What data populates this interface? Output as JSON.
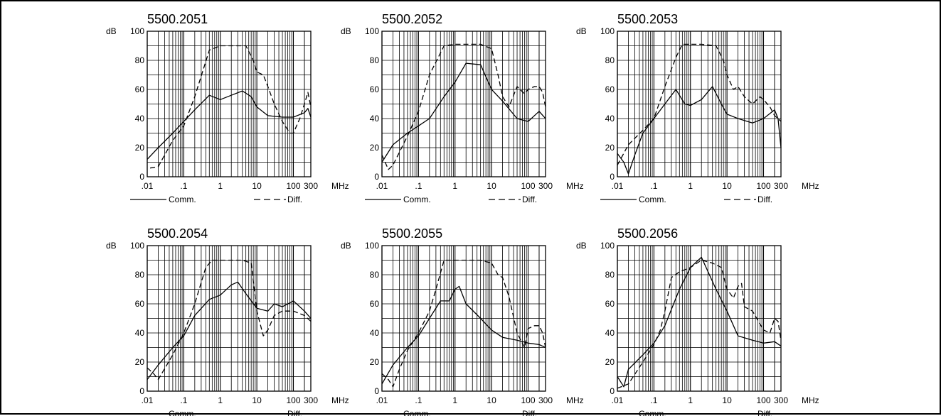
{
  "chart_data": [
    {
      "type": "line",
      "title": "5500.2051",
      "ylabel": "dB",
      "xunit": "MHz",
      "x_scale": "log",
      "xlim": [
        0.01,
        300
      ],
      "ylim": [
        0,
        100
      ],
      "xticks": [
        ".01",
        ".1",
        "1",
        "10",
        "100",
        "300"
      ],
      "yticks": [
        "0",
        "20",
        "40",
        "60",
        "80",
        "100"
      ],
      "grid": true,
      "series": [
        {
          "name": "Comm.",
          "style": "solid",
          "x": [
            0.01,
            0.02,
            0.05,
            0.1,
            0.2,
            0.5,
            1,
            2,
            4,
            7,
            10,
            20,
            50,
            100,
            200,
            250,
            300
          ],
          "y": [
            12,
            20,
            30,
            38,
            46,
            56,
            53,
            56,
            59,
            55,
            48,
            42,
            41,
            41,
            44,
            47,
            41
          ]
        },
        {
          "name": "Diff.",
          "style": "dashed",
          "x": [
            0.012,
            0.02,
            0.03,
            0.05,
            0.1,
            0.2,
            0.5,
            1,
            2,
            5,
            8,
            10,
            15,
            20,
            30,
            50,
            80,
            100,
            150,
            200,
            250,
            300
          ],
          "y": [
            6,
            7,
            15,
            25,
            35,
            55,
            87,
            90,
            90,
            90,
            80,
            72,
            70,
            62,
            50,
            38,
            30,
            30,
            40,
            50,
            58,
            48
          ]
        }
      ],
      "legend": [
        "Comm.",
        "Diff."
      ]
    },
    {
      "type": "line",
      "title": "5500.2052",
      "ylabel": "dB",
      "xunit": "MHz",
      "x_scale": "log",
      "xlim": [
        0.01,
        300
      ],
      "ylim": [
        0,
        100
      ],
      "xticks": [
        ".01",
        ".1",
        "1",
        "10",
        "100",
        "300"
      ],
      "yticks": [
        "0",
        "20",
        "40",
        "60",
        "80",
        "100"
      ],
      "grid": true,
      "series": [
        {
          "name": "Comm.",
          "style": "solid",
          "x": [
            0.01,
            0.02,
            0.05,
            0.1,
            0.2,
            0.5,
            1,
            2,
            5,
            10,
            20,
            50,
            100,
            200,
            300
          ],
          "y": [
            10,
            22,
            30,
            35,
            40,
            55,
            65,
            78,
            77,
            60,
            52,
            40,
            38,
            45,
            40
          ]
        },
        {
          "name": "Diff.",
          "style": "dashed",
          "x": [
            0.01,
            0.015,
            0.02,
            0.05,
            0.1,
            0.2,
            0.5,
            1,
            2,
            5,
            10,
            15,
            20,
            30,
            50,
            80,
            100,
            150,
            200,
            250,
            300
          ],
          "y": [
            15,
            5,
            8,
            28,
            45,
            70,
            90,
            91,
            91,
            91,
            88,
            70,
            55,
            48,
            62,
            57,
            60,
            62,
            62,
            58,
            48
          ]
        }
      ],
      "legend": [
        "Comm.",
        "Diff."
      ]
    },
    {
      "type": "line",
      "title": "5500.2053",
      "ylabel": "dB",
      "xunit": "MHz",
      "x_scale": "log",
      "xlim": [
        0.01,
        300
      ],
      "ylim": [
        0,
        100
      ],
      "xticks": [
        ".01",
        ".1",
        "1",
        "10",
        "100",
        "300"
      ],
      "yticks": [
        "0",
        "20",
        "40",
        "60",
        "80",
        "100"
      ],
      "grid": true,
      "series": [
        {
          "name": "Comm.",
          "style": "solid",
          "x": [
            0.01,
            0.015,
            0.02,
            0.03,
            0.05,
            0.1,
            0.2,
            0.4,
            0.7,
            1,
            2,
            4,
            7,
            10,
            20,
            50,
            100,
            200,
            250,
            300
          ],
          "y": [
            16,
            10,
            2,
            15,
            30,
            40,
            50,
            60,
            50,
            49,
            53,
            62,
            50,
            43,
            40,
            37,
            40,
            46,
            40,
            20
          ]
        },
        {
          "name": "Diff.",
          "style": "dashed",
          "x": [
            0.01,
            0.02,
            0.05,
            0.1,
            0.2,
            0.4,
            0.6,
            1,
            2,
            5,
            8,
            10,
            15,
            20,
            30,
            50,
            80,
            100,
            150,
            200,
            250,
            300
          ],
          "y": [
            8,
            22,
            32,
            40,
            62,
            82,
            91,
            91,
            91,
            90,
            80,
            70,
            60,
            62,
            55,
            50,
            55,
            53,
            48,
            42,
            40,
            38
          ]
        }
      ],
      "legend": [
        "Comm.",
        "Diff."
      ]
    },
    {
      "type": "line",
      "title": "5500.2054",
      "ylabel": "dB",
      "xunit": "MHz",
      "x_scale": "log",
      "xlim": [
        0.01,
        300
      ],
      "ylim": [
        0,
        100
      ],
      "xticks": [
        ".01",
        ".1",
        "1",
        "10",
        "100",
        "300"
      ],
      "yticks": [
        "0",
        "20",
        "40",
        "60",
        "80",
        "100"
      ],
      "grid": true,
      "series": [
        {
          "name": "Comm.",
          "style": "solid",
          "x": [
            0.01,
            0.02,
            0.05,
            0.1,
            0.2,
            0.5,
            1,
            2,
            3,
            5,
            10,
            20,
            30,
            50,
            100,
            200,
            300
          ],
          "y": [
            8,
            18,
            30,
            38,
            52,
            63,
            66,
            73,
            75,
            67,
            57,
            55,
            60,
            58,
            62,
            55,
            50
          ]
        },
        {
          "name": "Diff.",
          "style": "dashed",
          "x": [
            0.01,
            0.015,
            0.02,
            0.05,
            0.1,
            0.2,
            0.4,
            0.6,
            1,
            2,
            4,
            7,
            10,
            15,
            20,
            30,
            50,
            100,
            200,
            300
          ],
          "y": [
            16,
            12,
            8,
            25,
            40,
            60,
            85,
            90,
            90,
            90,
            90,
            88,
            55,
            38,
            42,
            52,
            55,
            55,
            52,
            48
          ]
        }
      ],
      "legend": [
        "Comm.",
        "Diff."
      ]
    },
    {
      "type": "line",
      "title": "5500.2055",
      "ylabel": "dB",
      "xunit": "MHz",
      "x_scale": "log",
      "xlim": [
        0.01,
        300
      ],
      "ylim": [
        0,
        100
      ],
      "xticks": [
        ".01",
        ".1",
        "1",
        "10",
        "100",
        "300"
      ],
      "yticks": [
        "0",
        "20",
        "40",
        "60",
        "80",
        "100"
      ],
      "grid": true,
      "series": [
        {
          "name": "Comm.",
          "style": "solid",
          "x": [
            0.01,
            0.02,
            0.05,
            0.1,
            0.2,
            0.4,
            0.7,
            1,
            1.3,
            2,
            5,
            10,
            20,
            50,
            100,
            200,
            300
          ],
          "y": [
            5,
            18,
            30,
            38,
            50,
            62,
            62,
            70,
            72,
            60,
            50,
            42,
            37,
            35,
            33,
            32,
            30
          ]
        },
        {
          "name": "Diff.",
          "style": "dashed",
          "x": [
            0.01,
            0.015,
            0.02,
            0.03,
            0.05,
            0.1,
            0.2,
            0.3,
            0.5,
            1,
            2,
            5,
            10,
            15,
            20,
            30,
            50,
            80,
            100,
            150,
            200,
            250,
            300
          ],
          "y": [
            12,
            8,
            3,
            15,
            28,
            40,
            55,
            70,
            90,
            90,
            90,
            90,
            88,
            80,
            78,
            65,
            40,
            30,
            43,
            45,
            45,
            40,
            30
          ]
        }
      ],
      "legend": [
        "Comm.",
        "Diff."
      ]
    },
    {
      "type": "line",
      "title": "5500.2056",
      "ylabel": "dB",
      "xunit": "MHz",
      "x_scale": "log",
      "xlim": [
        0.01,
        300
      ],
      "ylim": [
        0,
        100
      ],
      "xticks": [
        ".01",
        ".1",
        "1",
        "10",
        "100",
        "300"
      ],
      "yticks": [
        "0",
        "20",
        "40",
        "60",
        "80",
        "100"
      ],
      "grid": true,
      "series": [
        {
          "name": "Comm.",
          "style": "solid",
          "x": [
            0.01,
            0.015,
            0.02,
            0.05,
            0.1,
            0.2,
            0.5,
            1,
            2,
            5,
            10,
            20,
            50,
            100,
            200,
            300
          ],
          "y": [
            10,
            3,
            15,
            25,
            33,
            45,
            70,
            85,
            92,
            70,
            55,
            38,
            35,
            33,
            34,
            31
          ]
        },
        {
          "name": "Diff.",
          "style": "dashed",
          "x": [
            0.01,
            0.02,
            0.05,
            0.1,
            0.15,
            0.2,
            0.3,
            0.5,
            1,
            2,
            4,
            7,
            10,
            15,
            20,
            25,
            30,
            50,
            100,
            150,
            200,
            250,
            300
          ],
          "y": [
            2,
            5,
            20,
            32,
            42,
            55,
            78,
            82,
            85,
            90,
            88,
            85,
            70,
            64,
            72,
            74,
            58,
            55,
            42,
            40,
            50,
            48,
            35
          ]
        }
      ],
      "legend": [
        "Comm.",
        "Diff."
      ]
    }
  ]
}
